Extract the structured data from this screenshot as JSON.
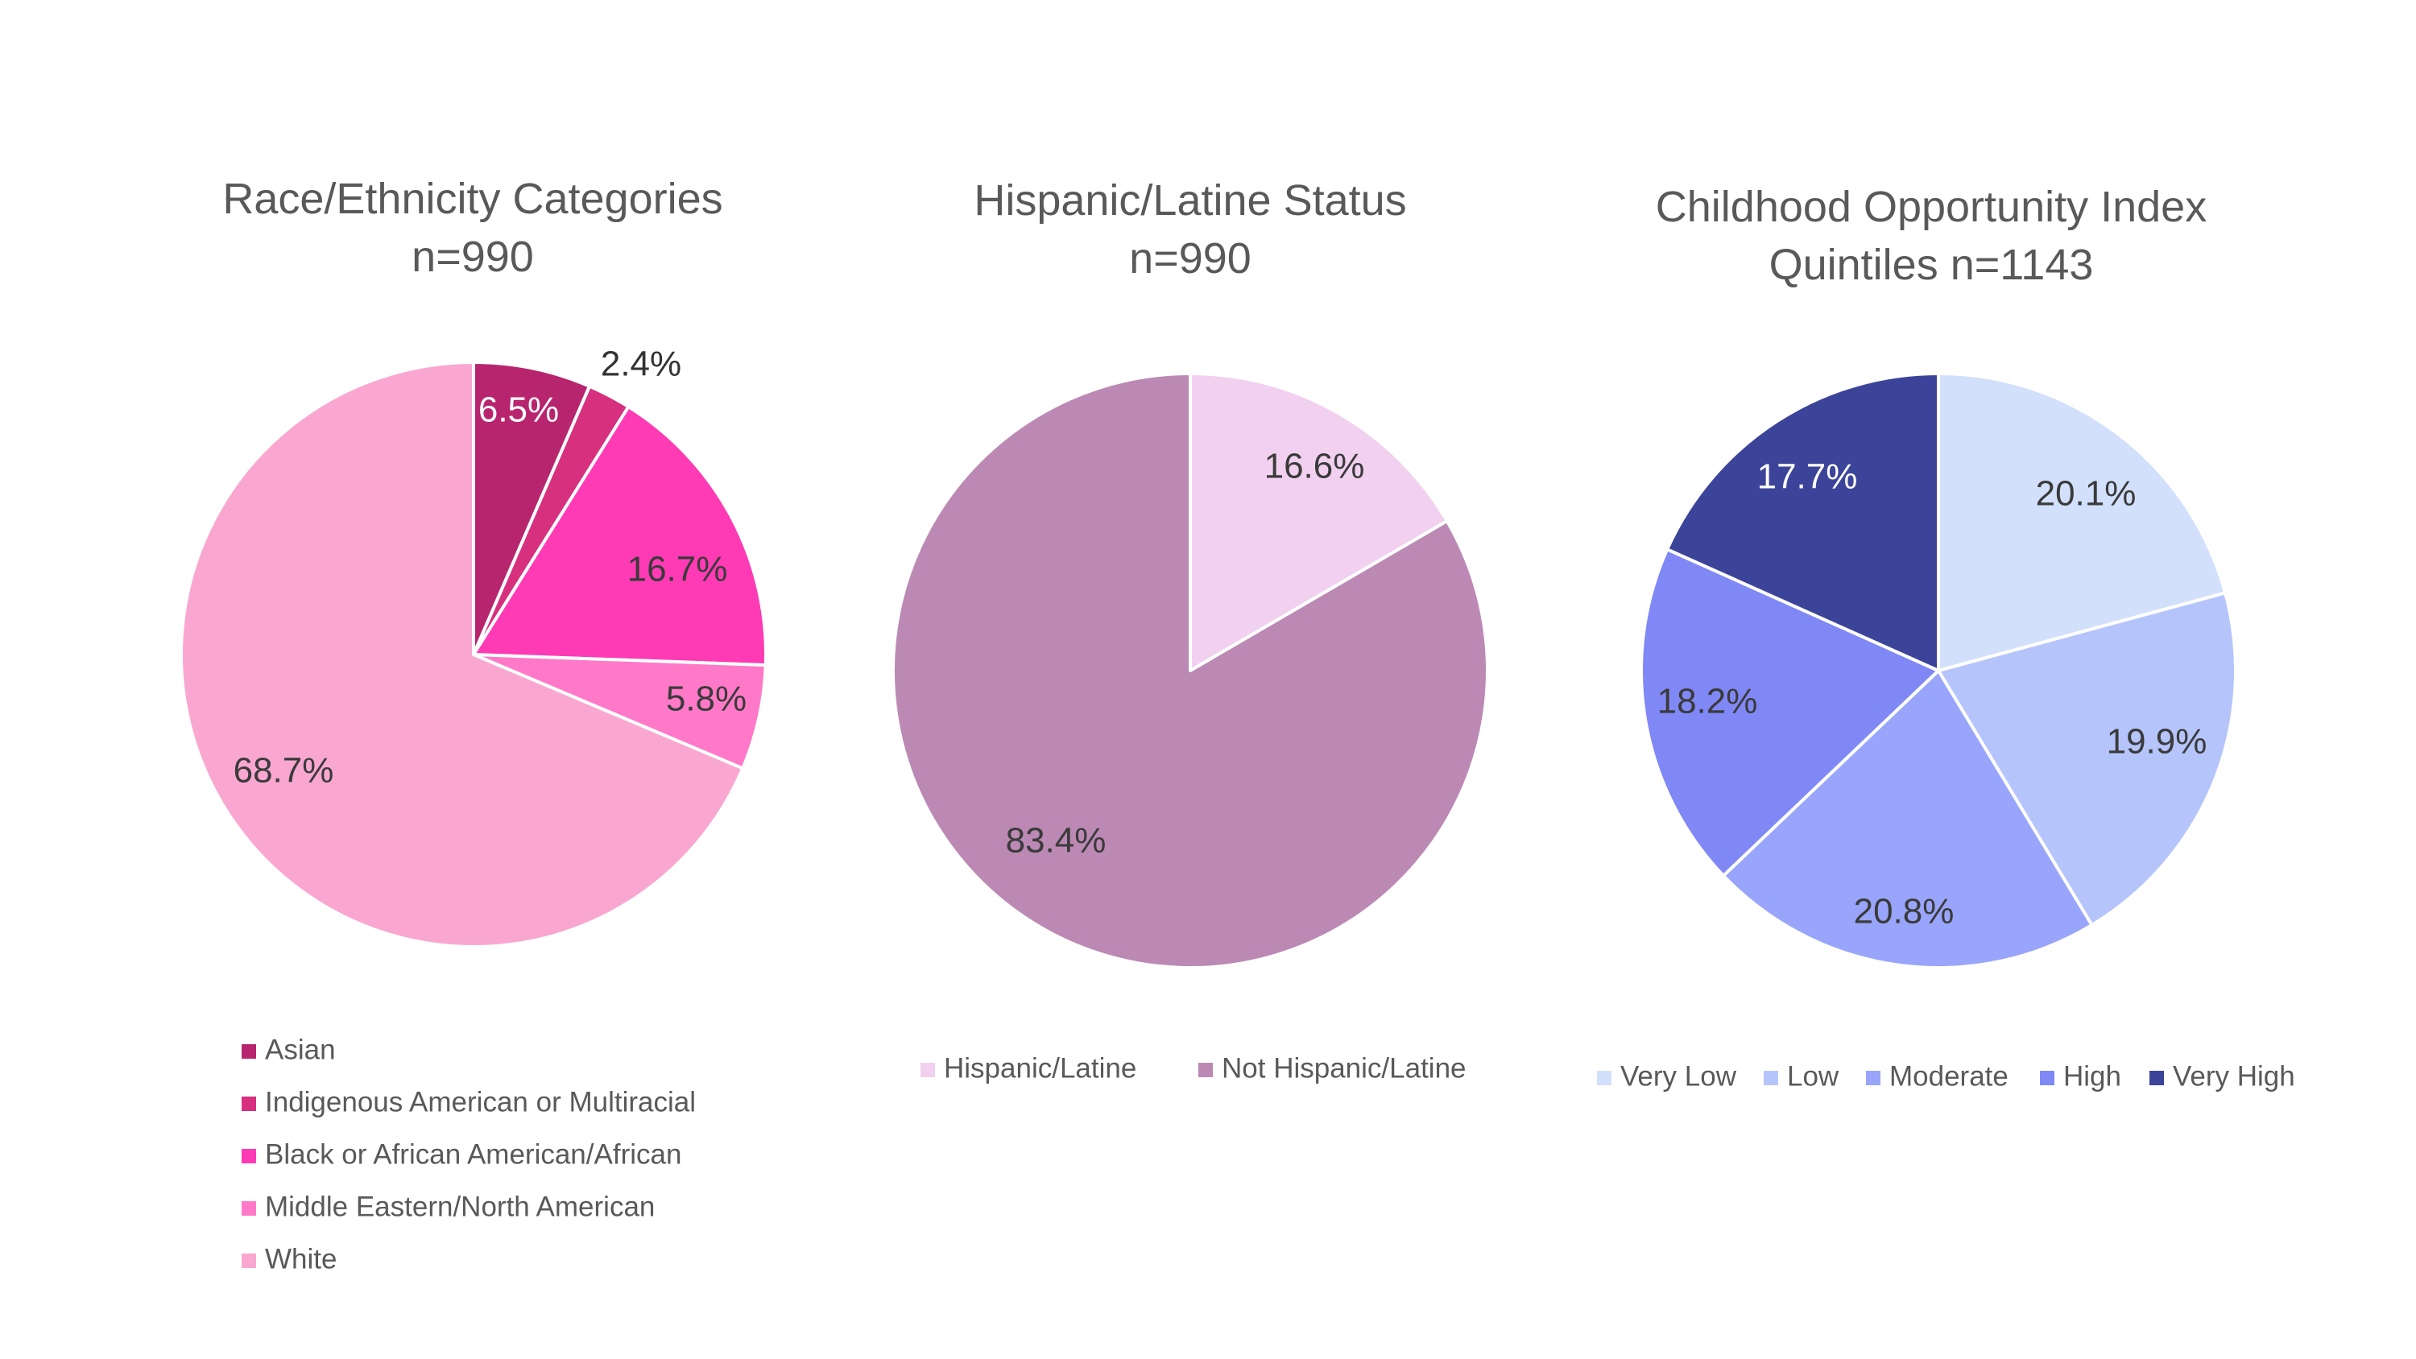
{
  "chart_data": [
    {
      "type": "pie",
      "title": [
        "Race/Ethnicity Categories",
        "n=990"
      ],
      "categories": [
        "Asian",
        "Indigenous American or Multiracial",
        "Black or African American/African",
        "Middle Eastern/North American",
        "White"
      ],
      "values": [
        6.5,
        2.4,
        16.7,
        5.8,
        68.7
      ],
      "value_labels": [
        "6.5%",
        "2.4%",
        "16.7%",
        "5.8%",
        "68.7%"
      ],
      "colors": [
        "#b8256f",
        "#d6307f",
        "#ff3ab5",
        "#ff79c8",
        "#f9a7d1"
      ],
      "label_colors": [
        "#ffffff",
        "#333333",
        "#3a3a3a",
        "#3a3a3a",
        "#3a3a3a"
      ],
      "legend_position": "bottom",
      "legend_layout": "vertical"
    },
    {
      "type": "pie",
      "title": [
        "Hispanic/Latine Status",
        "n=990"
      ],
      "categories": [
        "Hispanic/Latine",
        "Not Hispanic/Latine"
      ],
      "values": [
        16.6,
        83.4
      ],
      "value_labels": [
        "16.6%",
        "83.4%"
      ],
      "colors": [
        "#f1d1ef",
        "#bc89b4"
      ],
      "label_colors": [
        "#3a3a3a",
        "#3a3a3a"
      ],
      "legend_position": "bottom",
      "legend_layout": "horizontal"
    },
    {
      "type": "pie",
      "title": [
        "Childhood Opportunity Index",
        "Quintiles n=1143"
      ],
      "categories": [
        "Very Low",
        "Low",
        "Moderate",
        "High",
        "Very High"
      ],
      "values": [
        20.1,
        19.9,
        20.8,
        18.2,
        17.7
      ],
      "value_labels": [
        "20.1%",
        "19.9%",
        "20.8%",
        "18.2%",
        "17.7%"
      ],
      "colors": [
        "#d2e0fb",
        "#b5c5fc",
        "#98a5fa",
        "#8088f6",
        "#3c4499"
      ],
      "label_colors": [
        "#3a3a3a",
        "#3a3a3a",
        "#3a3a3a",
        "#3a3a3a",
        "#ffffff"
      ],
      "legend_position": "bottom",
      "legend_layout": "horizontal"
    }
  ]
}
